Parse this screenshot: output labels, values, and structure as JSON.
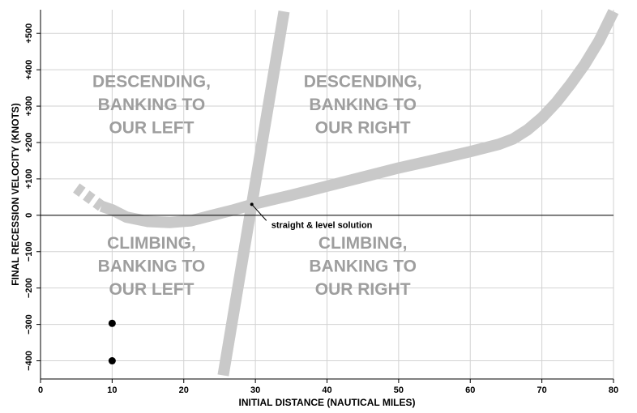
{
  "chart_data": {
    "type": "line",
    "title": "",
    "xlabel": "INITIAL DISTANCE (NAUTICAL MILES)",
    "ylabel": "FINAL RECESSION VELOCITY (KNOTS)",
    "xlim": [
      0,
      80
    ],
    "ylim": [
      -450,
      565
    ],
    "grid": true,
    "x_ticks": [
      {
        "value": 0,
        "label": "0"
      },
      {
        "value": 10,
        "label": "10"
      },
      {
        "value": 20,
        "label": "20"
      },
      {
        "value": 30,
        "label": "30"
      },
      {
        "value": 40,
        "label": "40"
      },
      {
        "value": 50,
        "label": "50"
      },
      {
        "value": 60,
        "label": "60"
      },
      {
        "value": 70,
        "label": "70"
      },
      {
        "value": 80,
        "label": "80"
      }
    ],
    "y_ticks": [
      {
        "value": -400,
        "label": "−400"
      },
      {
        "value": -300,
        "label": "−300"
      },
      {
        "value": -200,
        "label": "−200"
      },
      {
        "value": -100,
        "label": "−100"
      },
      {
        "value": 0,
        "label": "0"
      },
      {
        "value": 100,
        "label": "+100"
      },
      {
        "value": 200,
        "label": "+200"
      },
      {
        "value": 300,
        "label": "+300"
      },
      {
        "value": 400,
        "label": "+400"
      },
      {
        "value": 500,
        "label": "+500"
      }
    ],
    "series": [
      {
        "id": "steep-band",
        "color": "#c9c9c9",
        "points": [
          [
            25.5,
            -440
          ],
          [
            34,
            560
          ]
        ]
      },
      {
        "id": "curved-band",
        "color": "#c9c9c9",
        "points": [
          [
            8.5,
            25
          ],
          [
            10,
            15
          ],
          [
            12,
            -5
          ],
          [
            15,
            -17
          ],
          [
            18,
            -20
          ],
          [
            21,
            -15
          ],
          [
            24,
            0
          ],
          [
            27,
            15
          ],
          [
            30,
            32
          ],
          [
            35,
            55
          ],
          [
            40,
            80
          ],
          [
            45,
            105
          ],
          [
            50,
            130
          ],
          [
            55,
            152
          ],
          [
            60,
            175
          ],
          [
            64,
            195
          ],
          [
            66,
            210
          ],
          [
            68,
            235
          ],
          [
            70,
            268
          ],
          [
            72,
            310
          ],
          [
            74,
            360
          ],
          [
            76,
            415
          ],
          [
            78,
            480
          ],
          [
            80,
            560
          ]
        ]
      },
      {
        "id": "curved-band-dashed-extension",
        "color": "#c9c9c9",
        "dashed": true,
        "points": [
          [
            5,
            75
          ],
          [
            8.5,
            25
          ]
        ]
      }
    ],
    "markers": [
      {
        "x": 10,
        "y": -297
      },
      {
        "x": 10,
        "y": -400
      }
    ],
    "zero_line": 0,
    "annotations": [
      {
        "text": "straight & level solution",
        "point": [
          29.5,
          30
        ]
      }
    ],
    "regions": [
      {
        "lines": [
          "DESCENDING,",
          "BANKING TO",
          "OUR LEFT"
        ],
        "center": [
          15.5,
          305
        ]
      },
      {
        "lines": [
          "DESCENDING,",
          "BANKING TO",
          "OUR RIGHT"
        ],
        "center": [
          45,
          305
        ]
      },
      {
        "lines": [
          "CLIMBING,",
          "BANKING TO",
          "OUR LEFT"
        ],
        "center": [
          15.5,
          -140
        ]
      },
      {
        "lines": [
          "CLIMBING,",
          "BANKING TO",
          "OUR RIGHT"
        ],
        "center": [
          45,
          -140
        ]
      }
    ]
  }
}
